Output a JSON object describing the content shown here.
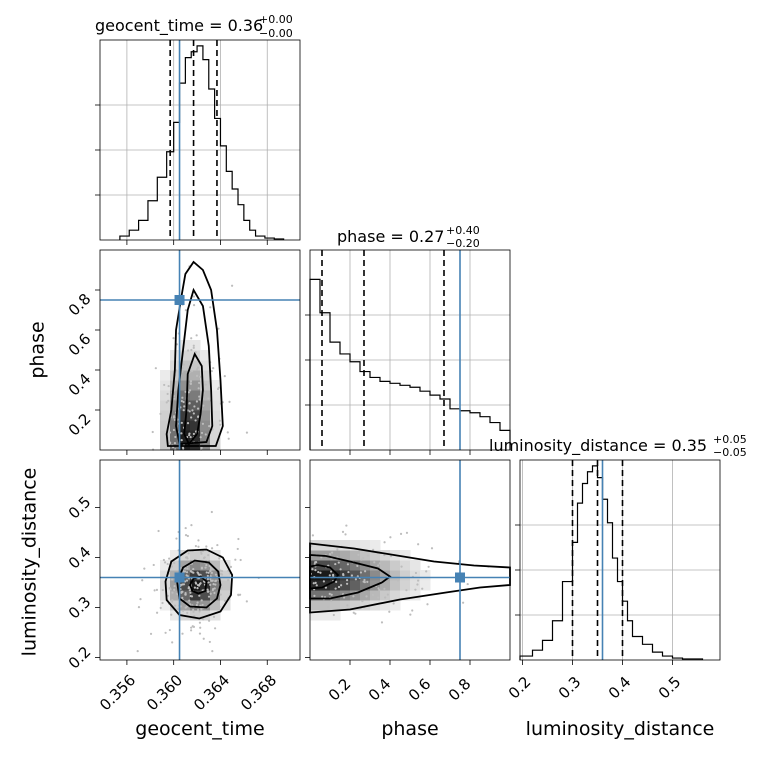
{
  "chart_data": {
    "type": "corner",
    "parameters": [
      "geocent_time",
      "phase",
      "luminosity_distance"
    ],
    "titles": [
      {
        "name": "geocent_time",
        "median": "0.36",
        "plus": "+0.00",
        "minus": "−0.00"
      },
      {
        "name": "phase",
        "median": "0.27",
        "plus": "+0.40",
        "minus": "−0.20"
      },
      {
        "name": "luminosity_distance",
        "median": "0.35",
        "plus": "+0.05",
        "minus": "−0.05"
      }
    ],
    "ranges": {
      "geocent_time": [
        0.3537,
        0.3708
      ],
      "phase": [
        0.0,
        1.0
      ],
      "luminosity_distance": [
        0.195,
        0.595
      ]
    },
    "ticks": {
      "geocent_time": [
        0.356,
        0.36,
        0.364,
        0.368
      ],
      "phase": [
        0.2,
        0.4,
        0.6,
        0.8
      ],
      "luminosity_distance_y": [
        0.2,
        0.3,
        0.4,
        0.5
      ],
      "luminosity_distance_x": [
        0.2,
        0.3,
        0.4,
        0.5
      ]
    },
    "tick_labels": {
      "geocent_time": [
        "0.356",
        "0.360",
        "0.364",
        "0.368"
      ],
      "phase": [
        "0.2",
        "0.4",
        "0.6",
        "0.8"
      ],
      "luminosity_distance_y": [
        "0.2",
        "0.3",
        "0.4",
        "0.5"
      ],
      "luminosity_distance_x": [
        "0.2",
        "0.3",
        "0.4",
        "0.5"
      ]
    },
    "truths": {
      "geocent_time": 0.3605,
      "phase": 0.75,
      "luminosity_distance": 0.36
    },
    "quantiles": {
      "geocent_time": [
        0.3597,
        0.3617,
        0.3637
      ],
      "phase": [
        0.06,
        0.27,
        0.67
      ],
      "luminosity_distance": [
        0.3,
        0.35,
        0.4
      ]
    },
    "histograms": {
      "geocent_time": {
        "edges": [
          0.3554,
          0.3562,
          0.357,
          0.3578,
          0.3586,
          0.3594,
          0.36,
          0.3605,
          0.361,
          0.3615,
          0.362,
          0.3625,
          0.363,
          0.3635,
          0.364,
          0.3645,
          0.365,
          0.3655,
          0.366,
          0.3665,
          0.367,
          0.3678,
          0.3686,
          0.3694
        ],
        "counts": [
          0.02,
          0.05,
          0.1,
          0.2,
          0.32,
          0.45,
          0.6,
          0.8,
          0.93,
          0.96,
          0.99,
          0.92,
          0.77,
          0.62,
          0.48,
          0.35,
          0.26,
          0.18,
          0.1,
          0.05,
          0.02,
          0.01,
          0.005
        ]
      },
      "phase": {
        "edges": [
          0.0,
          0.05,
          0.1,
          0.15,
          0.2,
          0.25,
          0.3,
          0.35,
          0.4,
          0.45,
          0.5,
          0.55,
          0.6,
          0.65,
          0.7,
          0.75,
          0.8,
          0.85,
          0.9,
          0.95,
          1.0
        ],
        "counts": [
          0.87,
          0.7,
          0.55,
          0.49,
          0.45,
          0.4,
          0.37,
          0.35,
          0.34,
          0.33,
          0.32,
          0.3,
          0.28,
          0.26,
          0.21,
          0.2,
          0.19,
          0.17,
          0.14,
          0.1
        ]
      },
      "luminosity_distance": {
        "edges": [
          0.195,
          0.22,
          0.24,
          0.26,
          0.28,
          0.3,
          0.31,
          0.32,
          0.33,
          0.34,
          0.35,
          0.36,
          0.37,
          0.38,
          0.39,
          0.4,
          0.41,
          0.42,
          0.44,
          0.46,
          0.48,
          0.5,
          0.52,
          0.56
        ],
        "counts": [
          0.02,
          0.05,
          0.1,
          0.2,
          0.4,
          0.6,
          0.8,
          0.9,
          0.96,
          0.99,
          0.93,
          0.82,
          0.7,
          0.52,
          0.4,
          0.3,
          0.2,
          0.12,
          0.08,
          0.04,
          0.02,
          0.01,
          0.005
        ]
      }
    },
    "density_2d": [
      {
        "x": "geocent_time",
        "y": "phase",
        "mode": [
          0.3613,
          0.05
        ],
        "levels": [
          [
            [
              0.3613,
              0.03
            ],
            [
              0.362,
              0.08
            ],
            [
              0.3623,
              0.18
            ],
            [
              0.3625,
              0.3
            ],
            [
              0.3624,
              0.42
            ],
            [
              0.3618,
              0.48
            ],
            [
              0.3612,
              0.38
            ],
            [
              0.3611,
              0.2
            ],
            [
              0.3609,
              0.08
            ]
          ],
          [
            [
              0.3605,
              0.03
            ],
            [
              0.3628,
              0.04
            ],
            [
              0.3633,
              0.12
            ],
            [
              0.3632,
              0.3
            ],
            [
              0.363,
              0.52
            ],
            [
              0.3625,
              0.72
            ],
            [
              0.3617,
              0.8
            ],
            [
              0.3612,
              0.7
            ],
            [
              0.3608,
              0.5
            ],
            [
              0.3604,
              0.3
            ],
            [
              0.3602,
              0.12
            ]
          ],
          [
            [
              0.3595,
              0.02
            ],
            [
              0.3636,
              0.02
            ],
            [
              0.3642,
              0.12
            ],
            [
              0.364,
              0.35
            ],
            [
              0.3637,
              0.6
            ],
            [
              0.3632,
              0.8
            ],
            [
              0.3625,
              0.9
            ],
            [
              0.3617,
              0.94
            ],
            [
              0.361,
              0.88
            ],
            [
              0.3607,
              0.78
            ],
            [
              0.3602,
              0.6
            ],
            [
              0.3601,
              0.4
            ],
            [
              0.3598,
              0.2
            ],
            [
              0.3594,
              0.08
            ]
          ]
        ]
      },
      {
        "x": "geocent_time",
        "y": "luminosity_distance",
        "mode": [
          0.362,
          0.345
        ],
        "levels": [
          [
            [
              0.3614,
              0.345
            ],
            [
              0.3617,
              0.358
            ],
            [
              0.3623,
              0.362
            ],
            [
              0.3628,
              0.352
            ],
            [
              0.3627,
              0.333
            ],
            [
              0.3621,
              0.328
            ],
            [
              0.3616,
              0.333
            ]
          ],
          [
            [
              0.3603,
              0.35
            ],
            [
              0.3608,
              0.38
            ],
            [
              0.3618,
              0.394
            ],
            [
              0.363,
              0.39
            ],
            [
              0.3638,
              0.372
            ],
            [
              0.364,
              0.345
            ],
            [
              0.3637,
              0.318
            ],
            [
              0.3628,
              0.3
            ],
            [
              0.3614,
              0.302
            ],
            [
              0.3605,
              0.318
            ]
          ],
          [
            [
              0.3593,
              0.352
            ],
            [
              0.3598,
              0.392
            ],
            [
              0.3612,
              0.414
            ],
            [
              0.3628,
              0.416
            ],
            [
              0.3642,
              0.4
            ],
            [
              0.365,
              0.365
            ],
            [
              0.3649,
              0.325
            ],
            [
              0.364,
              0.292
            ],
            [
              0.3622,
              0.278
            ],
            [
              0.3605,
              0.285
            ],
            [
              0.3594,
              0.315
            ]
          ]
        ]
      },
      {
        "x": "phase",
        "y": "luminosity_distance",
        "mode": [
          0.03,
          0.36
        ],
        "levels": [
          [
            [
              0.0,
              0.338
            ],
            [
              0.06,
              0.34
            ],
            [
              0.12,
              0.352
            ],
            [
              0.14,
              0.365
            ],
            [
              0.1,
              0.38
            ],
            [
              0.04,
              0.385
            ],
            [
              0.0,
              0.382
            ]
          ],
          [
            [
              0.0,
              0.318
            ],
            [
              0.1,
              0.318
            ],
            [
              0.24,
              0.33
            ],
            [
              0.36,
              0.35
            ],
            [
              0.4,
              0.362
            ],
            [
              0.34,
              0.378
            ],
            [
              0.2,
              0.392
            ],
            [
              0.08,
              0.403
            ],
            [
              0.0,
              0.405
            ]
          ],
          [
            [
              0.0,
              0.29
            ],
            [
              0.2,
              0.296
            ],
            [
              0.45,
              0.316
            ],
            [
              0.68,
              0.33
            ],
            [
              0.85,
              0.34
            ],
            [
              1.0,
              0.345
            ],
            [
              1.0,
              0.38
            ],
            [
              0.82,
              0.384
            ],
            [
              0.62,
              0.392
            ],
            [
              0.42,
              0.405
            ],
            [
              0.22,
              0.418
            ],
            [
              0.0,
              0.428
            ]
          ]
        ]
      }
    ]
  }
}
